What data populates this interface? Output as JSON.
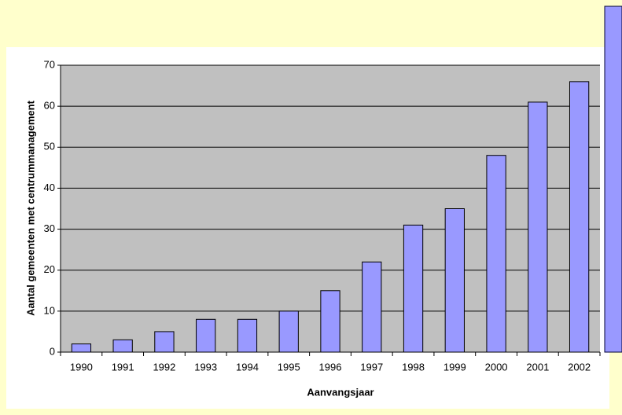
{
  "chart_data": {
    "type": "bar",
    "x_label": "Aanvangsjaar",
    "y_label": "Aantal gemeenten met centrummanagement",
    "categories": [
      "1990",
      "1991",
      "1992",
      "1993",
      "1994",
      "1995",
      "1996",
      "1997",
      "1998",
      "1999",
      "2000",
      "2001",
      "2002"
    ],
    "values": [
      2,
      3,
      5,
      8,
      8,
      10,
      15,
      22,
      31,
      35,
      48,
      61,
      66
    ],
    "color": "#9999ff",
    "ylim": [
      0,
      70
    ],
    "yticks": [
      0,
      10,
      20,
      30,
      40,
      50,
      60,
      70
    ],
    "grid": true
  }
}
